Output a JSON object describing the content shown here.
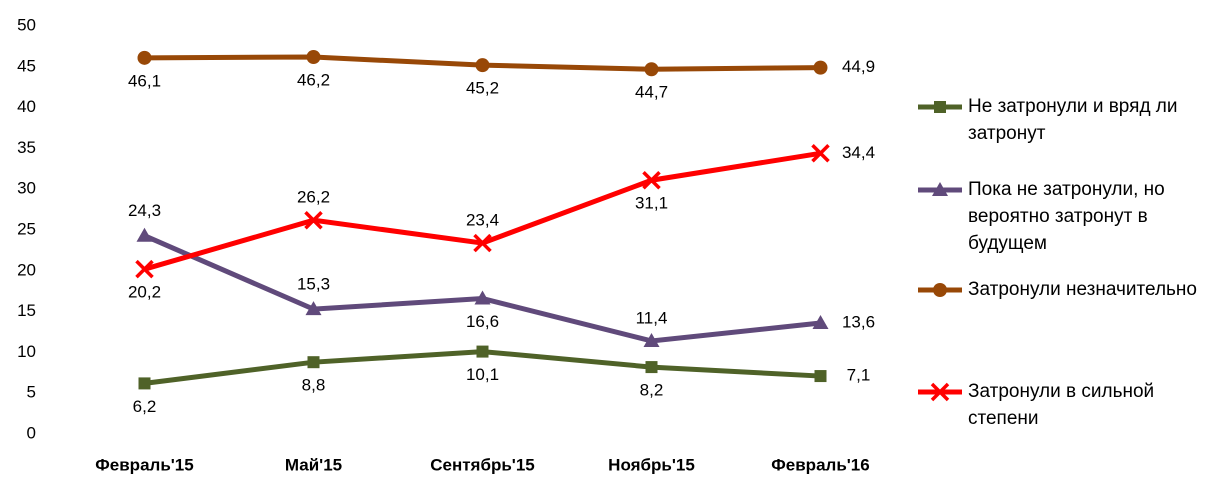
{
  "chart_data": {
    "type": "line",
    "categories": [
      "Февраль'15",
      "Май'15",
      "Сентябрь'15",
      "Ноябрь'15",
      "Февраль'16"
    ],
    "ylim": [
      0,
      50
    ],
    "yticks": [
      0,
      5,
      10,
      15,
      20,
      25,
      30,
      35,
      40,
      45,
      50
    ],
    "legend": "right",
    "series": [
      {
        "name": "Не затронули и вряд ли затронут",
        "color": "#4f6228",
        "marker": "square",
        "values": [
          6.2,
          8.8,
          10.1,
          8.2,
          7.1
        ],
        "value_labels": [
          "6,2",
          "8,8",
          "10,1",
          "8,2",
          "7,1"
        ]
      },
      {
        "name": "Пока не затронули, но вероятно затронут в будущем",
        "color": "#604a7b",
        "marker": "triangle",
        "values": [
          24.3,
          15.3,
          16.6,
          11.4,
          13.6
        ],
        "value_labels": [
          "24,3",
          "15,3",
          "16,6",
          "11,4",
          "13,6"
        ]
      },
      {
        "name": "Затронули незначительно",
        "color": "#984807",
        "marker": "circle",
        "values": [
          46.1,
          46.2,
          45.2,
          44.7,
          44.9
        ],
        "value_labels": [
          "46,1",
          "46,2",
          "45,2",
          "44,7",
          "44,9"
        ]
      },
      {
        "name": "Затронули в сильной степени",
        "color": "#ff0000",
        "marker": "x",
        "values": [
          20.2,
          26.2,
          23.4,
          31.1,
          34.4
        ],
        "value_labels": [
          "20,2",
          "26,2",
          "23,4",
          "31,1",
          "34,4"
        ]
      }
    ]
  }
}
